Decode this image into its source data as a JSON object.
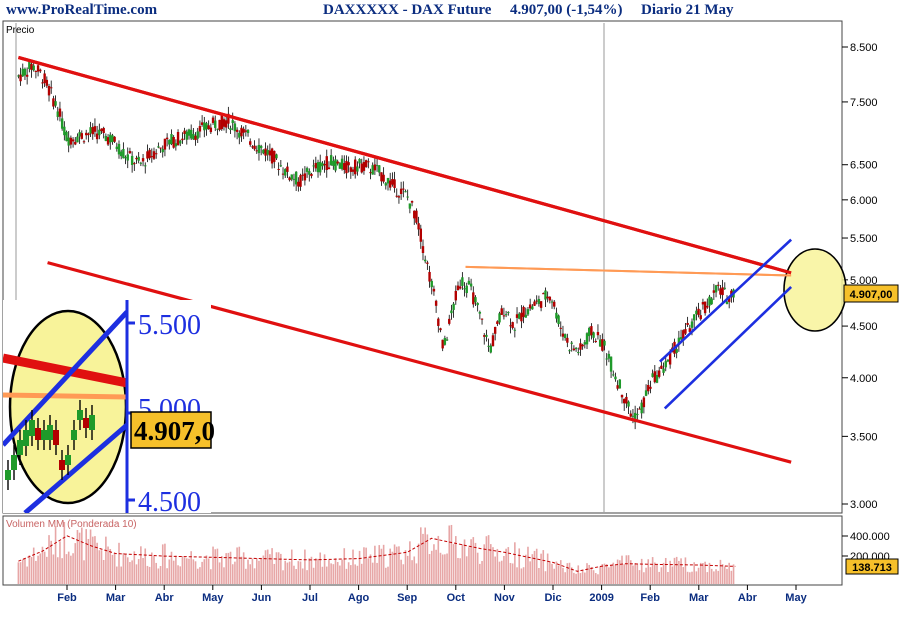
{
  "header": {
    "site": "www.ProRealTime.com",
    "instrument": "DAXXXXX - DAX Future",
    "quote": "4.907,00 (-1,54%)",
    "period": "Diario  21 May"
  },
  "price_panel": {
    "title": "Precio",
    "last_price_tag": "4.907,00",
    "inset_price_tag": "4.907,0",
    "inset_ticks": [
      "5.500",
      "5.000",
      "4.500"
    ]
  },
  "volume_panel": {
    "title": "Volumen MM (Ponderada 10)",
    "ticks": [
      "400.000",
      "200.000"
    ],
    "last_value_tag": "138.713"
  },
  "colors": {
    "header_text": "#0b2d80",
    "candle_up": "#1f9a2a",
    "candle_down": "#b30000",
    "trend_red": "#e01010",
    "resistance_orange": "#ff9a55",
    "rising_channel": "#1d2fe0",
    "highlight_fill": "#f8f39a",
    "price_tag_fill": "#f6c02a",
    "volume_bar": "#e7a6a6",
    "volume_ma": "#c40000"
  },
  "chart_data": {
    "type": "candlestick",
    "title": "DAXXXXX - DAX Future",
    "y_scale": "log",
    "price_ticks": [
      8500,
      7500,
      6500,
      6000,
      5500,
      5000,
      4500,
      4000,
      3500,
      3000
    ],
    "price_tick_labels": [
      "8.500",
      "7.500",
      "6.500",
      "6.000",
      "5.500",
      "5.000",
      "4.500",
      "4.000",
      "3.500",
      "3.000"
    ],
    "x_month_labels": [
      "Feb",
      "Mar",
      "Abr",
      "May",
      "Jun",
      "Jul",
      "Ago",
      "Sep",
      "Oct",
      "Nov",
      "Dic",
      "2009",
      "Feb",
      "Mar",
      "Abr",
      "May"
    ],
    "last_price": 4907.0,
    "change_pct": -1.54,
    "close_path": [
      {
        "m": 0.0,
        "v": 7950
      },
      {
        "m": 0.3,
        "v": 8150
      },
      {
        "m": 0.5,
        "v": 7950
      },
      {
        "m": 0.8,
        "v": 7400
      },
      {
        "m": 1.0,
        "v": 6900
      },
      {
        "m": 1.3,
        "v": 6950
      },
      {
        "m": 1.6,
        "v": 7000
      },
      {
        "m": 1.9,
        "v": 6900
      },
      {
        "m": 2.2,
        "v": 6650
      },
      {
        "m": 2.5,
        "v": 6500
      },
      {
        "m": 2.8,
        "v": 6700
      },
      {
        "m": 3.1,
        "v": 6850
      },
      {
        "m": 3.5,
        "v": 6950
      },
      {
        "m": 3.8,
        "v": 7050
      },
      {
        "m": 4.1,
        "v": 7150
      },
      {
        "m": 4.3,
        "v": 7200
      },
      {
        "m": 4.6,
        "v": 7000
      },
      {
        "m": 4.9,
        "v": 6800
      },
      {
        "m": 5.2,
        "v": 6650
      },
      {
        "m": 5.5,
        "v": 6400
      },
      {
        "m": 5.8,
        "v": 6250
      },
      {
        "m": 6.0,
        "v": 6400
      },
      {
        "m": 6.4,
        "v": 6550
      },
      {
        "m": 6.8,
        "v": 6450
      },
      {
        "m": 7.1,
        "v": 6500
      },
      {
        "m": 7.4,
        "v": 6400
      },
      {
        "m": 7.7,
        "v": 6200
      },
      {
        "m": 8.0,
        "v": 6050
      },
      {
        "m": 8.2,
        "v": 5750
      },
      {
        "m": 8.4,
        "v": 5200
      },
      {
        "m": 8.6,
        "v": 4700
      },
      {
        "m": 8.75,
        "v": 4250
      },
      {
        "m": 8.9,
        "v": 4600
      },
      {
        "m": 9.1,
        "v": 5000
      },
      {
        "m": 9.3,
        "v": 4900
      },
      {
        "m": 9.5,
        "v": 4600
      },
      {
        "m": 9.7,
        "v": 4250
      },
      {
        "m": 9.85,
        "v": 4500
      },
      {
        "m": 10.0,
        "v": 4700
      },
      {
        "m": 10.2,
        "v": 4500
      },
      {
        "m": 10.4,
        "v": 4650
      },
      {
        "m": 10.7,
        "v": 4750
      },
      {
        "m": 10.95,
        "v": 4850
      },
      {
        "m": 11.15,
        "v": 4500
      },
      {
        "m": 11.35,
        "v": 4300
      },
      {
        "m": 11.55,
        "v": 4250
      },
      {
        "m": 11.8,
        "v": 4450
      },
      {
        "m": 12.05,
        "v": 4300
      },
      {
        "m": 12.3,
        "v": 4000
      },
      {
        "m": 12.5,
        "v": 3800
      },
      {
        "m": 12.65,
        "v": 3650
      },
      {
        "m": 12.8,
        "v": 3700
      },
      {
        "m": 13.0,
        "v": 3950
      },
      {
        "m": 13.3,
        "v": 4100
      },
      {
        "m": 13.6,
        "v": 4350
      },
      {
        "m": 13.9,
        "v": 4550
      },
      {
        "m": 14.2,
        "v": 4750
      },
      {
        "m": 14.4,
        "v": 4900
      },
      {
        "m": 14.6,
        "v": 4800
      },
      {
        "m": 14.75,
        "v": 4907
      }
    ],
    "red_trend_upper": {
      "start": {
        "m": 0.0,
        "v": 8300
      },
      "end": {
        "m": 15.9,
        "v": 5080
      }
    },
    "red_trend_lower": {
      "start": {
        "m": 0.6,
        "v": 5200
      },
      "end": {
        "m": 15.9,
        "v": 3300
      }
    },
    "orange_resistance": {
      "start": {
        "m": 9.2,
        "v": 5150
      },
      "end": {
        "m": 15.9,
        "v": 5050
      }
    },
    "blue_channel_upper": {
      "start": {
        "m": 13.2,
        "v": 4150
      },
      "end": {
        "m": 15.9,
        "v": 5480
      }
    },
    "blue_channel_lower": {
      "start": {
        "m": 13.3,
        "v": 3730
      },
      "end": {
        "m": 15.9,
        "v": 4920
      }
    },
    "volume_ma_path": [
      {
        "m": 0.0,
        "v": 180000
      },
      {
        "m": 0.5,
        "v": 260000
      },
      {
        "m": 1.0,
        "v": 380000
      },
      {
        "m": 1.5,
        "v": 300000
      },
      {
        "m": 2.0,
        "v": 240000
      },
      {
        "m": 2.5,
        "v": 230000
      },
      {
        "m": 3.0,
        "v": 220000
      },
      {
        "m": 4.0,
        "v": 210000
      },
      {
        "m": 5.0,
        "v": 200000
      },
      {
        "m": 6.0,
        "v": 190000
      },
      {
        "m": 7.0,
        "v": 200000
      },
      {
        "m": 8.0,
        "v": 250000
      },
      {
        "m": 8.5,
        "v": 360000
      },
      {
        "m": 9.0,
        "v": 320000
      },
      {
        "m": 9.5,
        "v": 280000
      },
      {
        "m": 10.0,
        "v": 250000
      },
      {
        "m": 11.0,
        "v": 170000
      },
      {
        "m": 11.5,
        "v": 100000
      },
      {
        "m": 12.0,
        "v": 140000
      },
      {
        "m": 12.5,
        "v": 160000
      },
      {
        "m": 13.0,
        "v": 155000
      },
      {
        "m": 14.0,
        "v": 150000
      },
      {
        "m": 14.75,
        "v": 138713
      }
    ],
    "volume_last": 138713
  }
}
